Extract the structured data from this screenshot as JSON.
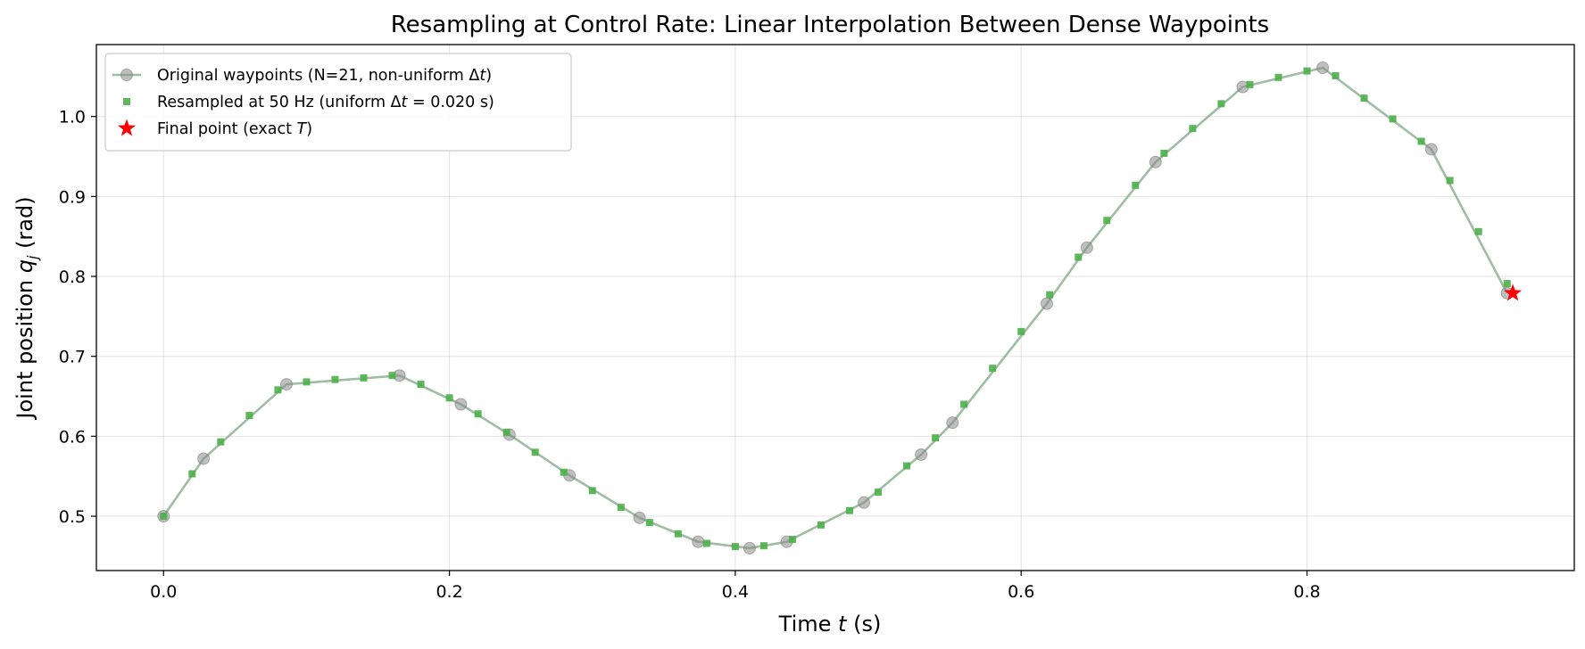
{
  "chart_data": {
    "type": "line",
    "title": "Resampling at Control Rate: Linear Interpolation Between Dense Waypoints",
    "xlabel": {
      "pre": "Time ",
      "var": "t",
      "post": " (s)"
    },
    "ylabel": {
      "pre": "Joint position ",
      "var": "q",
      "sub": "j",
      "post": " (rad)"
    },
    "xlim": [
      -0.047,
      0.987
    ],
    "ylim": [
      0.432,
      1.09
    ],
    "xticks": [
      0.0,
      0.2,
      0.4,
      0.6,
      0.8
    ],
    "xtick_labels": [
      "0.0",
      "0.2",
      "0.4",
      "0.6",
      "0.8"
    ],
    "yticks": [
      0.5,
      0.6,
      0.7,
      0.8,
      0.9,
      1.0
    ],
    "ytick_labels": [
      "0.5",
      "0.6",
      "0.7",
      "0.8",
      "0.9",
      "1.0"
    ],
    "grid": true,
    "legend_position": "top-left",
    "series": [
      {
        "name": "Original waypoints (N=21, non-uniform Δt)",
        "legend_parts": [
          {
            "t": "Original waypoints (N=21, non-uniform Δ"
          },
          {
            "t": "t",
            "i": true
          },
          {
            "t": ")"
          }
        ],
        "style": "line-circle",
        "color": "#8a8a8a",
        "line_color": "#7fa783",
        "x": [
          0.0,
          0.028,
          0.086,
          0.165,
          0.208,
          0.242,
          0.284,
          0.333,
          0.374,
          0.41,
          0.436,
          0.49,
          0.53,
          0.552,
          0.618,
          0.646,
          0.694,
          0.755,
          0.811,
          0.887,
          0.94
        ],
        "y": [
          0.5,
          0.572,
          0.665,
          0.676,
          0.64,
          0.602,
          0.551,
          0.498,
          0.468,
          0.46,
          0.468,
          0.517,
          0.577,
          0.617,
          0.766,
          0.836,
          0.943,
          1.037,
          1.061,
          0.959,
          0.779
        ]
      },
      {
        "name": "Resampled at 50 Hz (uniform Δt = 0.020 s)",
        "legend_parts": [
          {
            "t": "Resampled at 50 Hz (uniform Δ"
          },
          {
            "t": "t",
            "i": true
          },
          {
            "t": " = 0.020 s)"
          }
        ],
        "style": "square",
        "color": "#4daf4a",
        "x": [
          0.0,
          0.02,
          0.04,
          0.06,
          0.08,
          0.1,
          0.12,
          0.14,
          0.16,
          0.18,
          0.2,
          0.22,
          0.24,
          0.26,
          0.28,
          0.3,
          0.32,
          0.34,
          0.36,
          0.38,
          0.4,
          0.42,
          0.44,
          0.46,
          0.48,
          0.5,
          0.52,
          0.54,
          0.56,
          0.58,
          0.6,
          0.62,
          0.64,
          0.66,
          0.68,
          0.7,
          0.72,
          0.74,
          0.76,
          0.78,
          0.8,
          0.82,
          0.84,
          0.86,
          0.88,
          0.9,
          0.92,
          0.94
        ],
        "y": [
          0.5,
          0.553,
          0.593,
          0.626,
          0.658,
          0.668,
          0.671,
          0.673,
          0.676,
          0.665,
          0.648,
          0.628,
          0.605,
          0.58,
          0.555,
          0.532,
          0.511,
          0.492,
          0.478,
          0.466,
          0.462,
          0.463,
          0.471,
          0.489,
          0.507,
          0.53,
          0.563,
          0.598,
          0.64,
          0.685,
          0.731,
          0.777,
          0.824,
          0.87,
          0.914,
          0.954,
          0.985,
          1.016,
          1.04,
          1.049,
          1.057,
          1.051,
          1.023,
          0.997,
          0.969,
          0.92,
          0.856,
          0.791
        ]
      },
      {
        "name": "Final point (exact T)",
        "legend_parts": [
          {
            "t": "Final point (exact "
          },
          {
            "t": "T",
            "i": true
          },
          {
            "t": ")"
          }
        ],
        "style": "star",
        "color": "#ff0000",
        "x": [
          0.944
        ],
        "y": [
          0.779
        ]
      }
    ]
  }
}
